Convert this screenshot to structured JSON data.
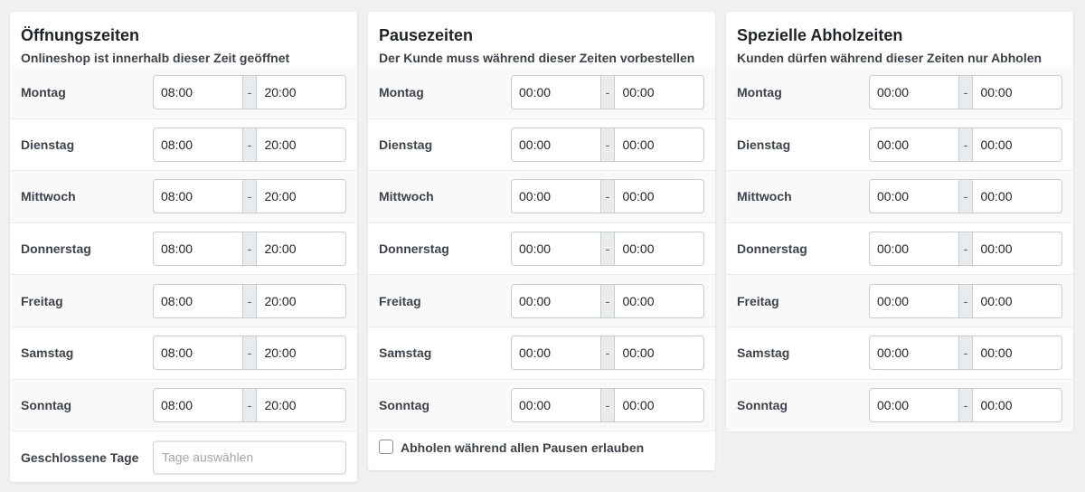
{
  "panels": [
    {
      "title": "Öffnungszeiten",
      "subtitle": "Onlineshop ist innerhalb dieser Zeit geöffnet",
      "separator": "-",
      "rows": [
        {
          "day": "Montag",
          "from": "08:00",
          "to": "20:00"
        },
        {
          "day": "Dienstag",
          "from": "08:00",
          "to": "20:00"
        },
        {
          "day": "Mittwoch",
          "from": "08:00",
          "to": "20:00"
        },
        {
          "day": "Donnerstag",
          "from": "08:00",
          "to": "20:00"
        },
        {
          "day": "Freitag",
          "from": "08:00",
          "to": "20:00"
        },
        {
          "day": "Samstag",
          "from": "08:00",
          "to": "20:00"
        },
        {
          "day": "Sonntag",
          "from": "08:00",
          "to": "20:00"
        }
      ],
      "closed_days_label": "Geschlossene Tage",
      "closed_days_placeholder": "Tage auswählen"
    },
    {
      "title": "Pausezeiten",
      "subtitle": "Der Kunde muss während dieser Zeiten vorbestellen",
      "separator": "-",
      "rows": [
        {
          "day": "Montag",
          "from": "00:00",
          "to": "00:00"
        },
        {
          "day": "Dienstag",
          "from": "00:00",
          "to": "00:00"
        },
        {
          "day": "Mittwoch",
          "from": "00:00",
          "to": "00:00"
        },
        {
          "day": "Donnerstag",
          "from": "00:00",
          "to": "00:00"
        },
        {
          "day": "Freitag",
          "from": "00:00",
          "to": "00:00"
        },
        {
          "day": "Samstag",
          "from": "00:00",
          "to": "00:00"
        },
        {
          "day": "Sonntag",
          "from": "00:00",
          "to": "00:00"
        }
      ],
      "pickup_during_breaks_label": "Abholen während allen Pausen erlauben",
      "pickup_during_breaks_checked": false
    },
    {
      "title": "Spezielle Abholzeiten",
      "subtitle": "Kunden dürfen während dieser Zeiten nur Abholen",
      "separator": "-",
      "rows": [
        {
          "day": "Montag",
          "from": "00:00",
          "to": "00:00"
        },
        {
          "day": "Dienstag",
          "from": "00:00",
          "to": "00:00"
        },
        {
          "day": "Mittwoch",
          "from": "00:00",
          "to": "00:00"
        },
        {
          "day": "Donnerstag",
          "from": "00:00",
          "to": "00:00"
        },
        {
          "day": "Freitag",
          "from": "00:00",
          "to": "00:00"
        },
        {
          "day": "Samstag",
          "from": "00:00",
          "to": "00:00"
        },
        {
          "day": "Sonntag",
          "from": "00:00",
          "to": "00:00"
        }
      ]
    }
  ]
}
